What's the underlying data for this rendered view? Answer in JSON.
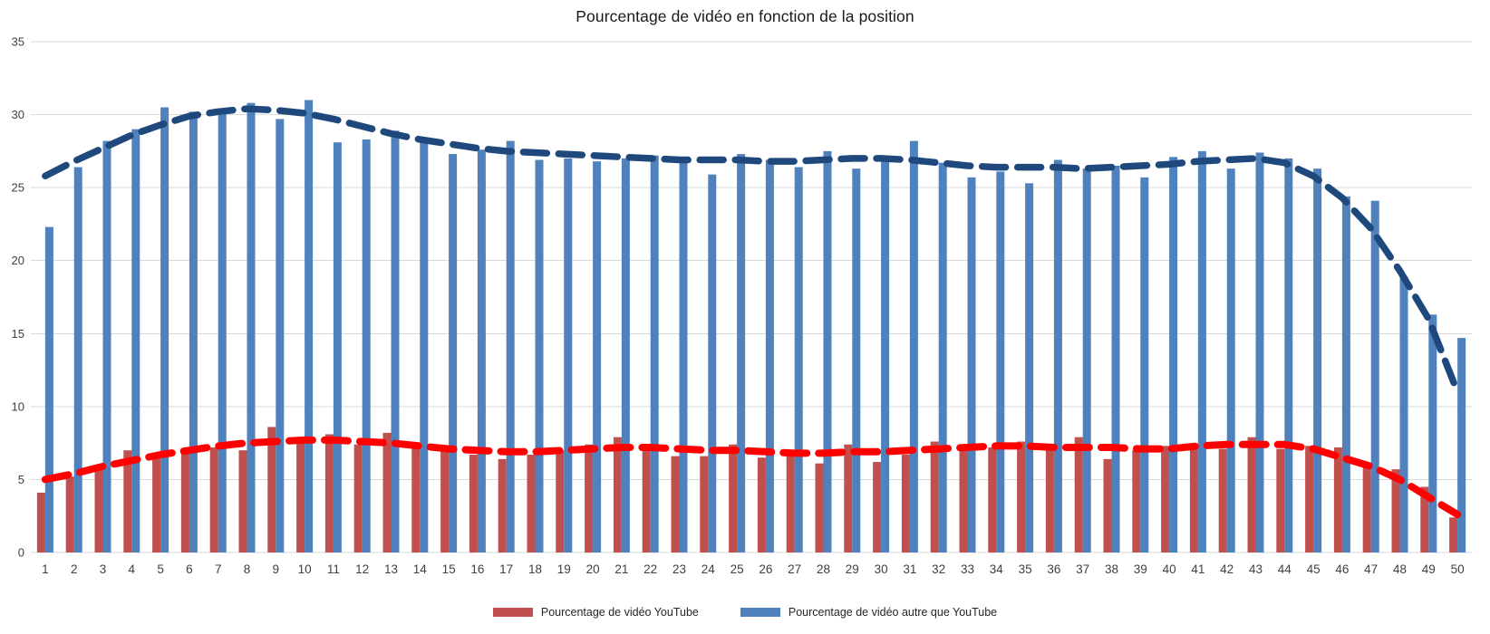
{
  "title": "Pourcentage de vidéo en fonction de la position",
  "colors": {
    "youtube_bar": "#C0504D",
    "other_bar": "#4F81BD",
    "youtube_trend": "#FF0000",
    "other_trend": "#1F497D",
    "gridline": "#D9D9D9",
    "axis_text": "#404040"
  },
  "legend": [
    {
      "label": "Pourcentage de vidéo YouTube",
      "color": "#C0504D"
    },
    {
      "label": "Pourcentage de vidéo autre que YouTube",
      "color": "#4F81BD"
    }
  ],
  "chart_data": {
    "type": "bar",
    "title": "Pourcentage de vidéo en fonction de la position",
    "xlabel": "",
    "ylabel": "",
    "ylim": [
      0,
      35
    ],
    "yticks": [
      0,
      5,
      10,
      15,
      20,
      25,
      30,
      35
    ],
    "grid": true,
    "legend_position": "bottom",
    "categories": [
      1,
      2,
      3,
      4,
      5,
      6,
      7,
      8,
      9,
      10,
      11,
      12,
      13,
      14,
      15,
      16,
      17,
      18,
      19,
      20,
      21,
      22,
      23,
      24,
      25,
      26,
      27,
      28,
      29,
      30,
      31,
      32,
      33,
      34,
      35,
      36,
      37,
      38,
      39,
      40,
      41,
      42,
      43,
      44,
      45,
      46,
      47,
      48,
      49,
      50
    ],
    "series": [
      {
        "name": "Pourcentage de vidéo YouTube",
        "kind": "bar",
        "color": "#C0504D",
        "values": [
          4.1,
          5.2,
          5.8,
          7.0,
          6.5,
          7.0,
          7.2,
          7.0,
          8.6,
          7.8,
          8.1,
          7.4,
          8.2,
          7.2,
          7.0,
          6.7,
          6.4,
          6.7,
          7.0,
          7.4,
          7.9,
          7.3,
          6.6,
          6.6,
          7.4,
          6.5,
          6.6,
          6.1,
          7.4,
          6.2,
          6.7,
          7.6,
          7.1,
          7.2,
          7.6,
          7.1,
          7.9,
          6.4,
          7.0,
          7.3,
          7.2,
          7.1,
          7.9,
          7.1,
          7.3,
          7.2,
          6.0,
          5.7,
          4.5,
          2.4
        ]
      },
      {
        "name": "Pourcentage de vidéo autre que YouTube",
        "kind": "bar",
        "color": "#4F81BD",
        "values": [
          22.3,
          26.4,
          28.2,
          29.0,
          30.5,
          30.2,
          30.3,
          30.8,
          29.7,
          31.0,
          28.1,
          28.3,
          28.9,
          28.1,
          27.3,
          27.6,
          28.2,
          26.9,
          27.0,
          26.8,
          27.0,
          27.2,
          26.8,
          25.9,
          27.3,
          26.9,
          26.4,
          27.5,
          26.3,
          27.1,
          28.2,
          26.7,
          25.7,
          26.1,
          25.3,
          26.9,
          26.3,
          26.5,
          25.7,
          27.1,
          27.5,
          26.3,
          27.4,
          27.0,
          26.3,
          24.4,
          24.1,
          18.9,
          16.3,
          14.7
        ]
      },
      {
        "name": "trend_youtube",
        "kind": "line",
        "dashed": true,
        "color": "#FF0000",
        "stroke_width": 8,
        "values": [
          5.0,
          5.4,
          5.9,
          6.3,
          6.7,
          7.0,
          7.3,
          7.5,
          7.6,
          7.7,
          7.7,
          7.6,
          7.5,
          7.3,
          7.1,
          7.0,
          6.9,
          6.9,
          7.0,
          7.1,
          7.2,
          7.2,
          7.1,
          7.0,
          7.0,
          6.9,
          6.8,
          6.8,
          6.9,
          6.9,
          7.0,
          7.1,
          7.2,
          7.3,
          7.3,
          7.2,
          7.2,
          7.2,
          7.1,
          7.1,
          7.3,
          7.4,
          7.4,
          7.4,
          7.1,
          6.5,
          5.9,
          5.0,
          3.8,
          2.6
        ]
      },
      {
        "name": "trend_other",
        "kind": "line",
        "dashed": true,
        "color": "#1F497D",
        "stroke_width": 7.5,
        "values": [
          25.8,
          26.8,
          27.7,
          28.6,
          29.3,
          29.9,
          30.2,
          30.4,
          30.3,
          30.1,
          29.7,
          29.2,
          28.7,
          28.3,
          28.0,
          27.7,
          27.5,
          27.4,
          27.3,
          27.2,
          27.1,
          27.0,
          26.9,
          26.9,
          26.9,
          26.8,
          26.8,
          26.9,
          27.0,
          27.0,
          26.9,
          26.7,
          26.5,
          26.4,
          26.4,
          26.4,
          26.3,
          26.4,
          26.5,
          26.6,
          26.8,
          26.9,
          27.0,
          26.7,
          25.8,
          24.3,
          22.2,
          19.3,
          16.0,
          11.0
        ]
      }
    ]
  }
}
